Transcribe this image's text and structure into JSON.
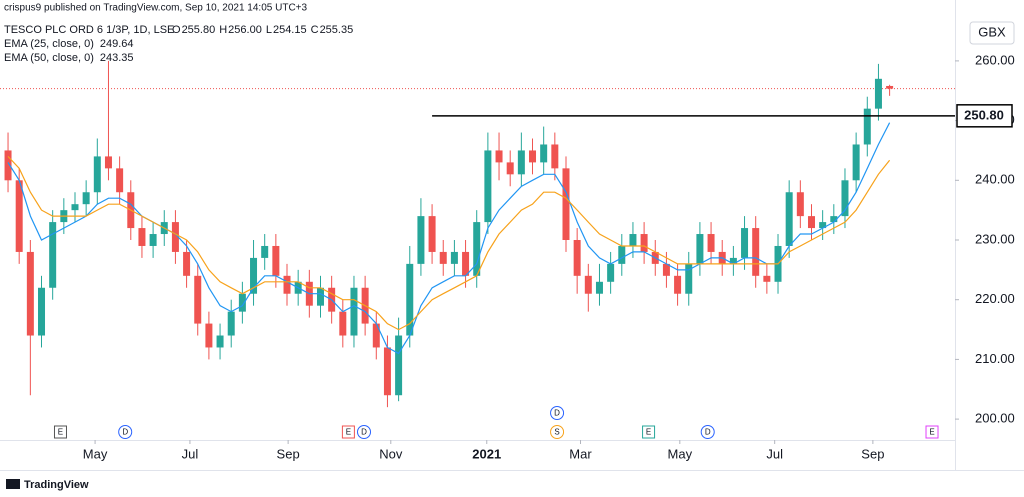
{
  "header": {
    "publisher": "crispus9 published on TradingView.com, Sep 10, 2021 14:05 UTC+3",
    "currency": "GBX",
    "footer": "TradingView"
  },
  "chart_data": {
    "type": "candlestick",
    "legend": {
      "symbol": "TESCO PLC ORD 6 1/3P, 1D, LSE",
      "ohlc": [
        {
          "key": "O",
          "value": "255.80"
        },
        {
          "key": "H",
          "value": "256.00"
        },
        {
          "key": "L",
          "value": "254.15"
        },
        {
          "key": "C",
          "value": "255.35"
        }
      ]
    },
    "open": [
      245,
      240,
      228,
      214,
      222,
      233,
      235,
      236,
      238,
      244,
      242,
      238,
      232,
      229,
      231,
      233,
      228,
      224,
      216,
      212,
      214,
      218,
      221,
      227,
      229,
      224,
      221,
      223,
      219,
      222,
      218,
      214,
      222,
      216,
      212,
      204,
      214,
      226,
      234,
      228,
      226,
      228,
      224,
      233,
      245,
      243,
      241,
      245,
      243,
      246,
      242,
      230,
      224,
      221,
      223,
      226,
      229,
      231,
      228,
      226,
      224,
      221,
      226,
      231,
      228,
      226,
      227,
      232,
      224,
      223,
      229,
      238,
      234,
      232,
      233,
      234,
      240,
      246,
      252,
      255.8
    ],
    "high": [
      248,
      242,
      230,
      224,
      235,
      237,
      238,
      240,
      247,
      260,
      244,
      240,
      234,
      233,
      235,
      235,
      230,
      226,
      218,
      216,
      220,
      223,
      230,
      231,
      231,
      226,
      225,
      225,
      224,
      224,
      220,
      224,
      224,
      218,
      214,
      217,
      229,
      237,
      236,
      230,
      230,
      230,
      235,
      248,
      248,
      245,
      248,
      247,
      249,
      248,
      244,
      232,
      226,
      226,
      228,
      231,
      233,
      233,
      230,
      228,
      226,
      228,
      233,
      233,
      230,
      229,
      234,
      234,
      226,
      231,
      240,
      240,
      236,
      235,
      236,
      242,
      248,
      254,
      259.5,
      256
    ],
    "low": [
      238,
      226,
      204,
      212,
      220,
      231,
      233,
      234,
      236,
      240,
      236,
      230,
      227,
      227,
      229,
      226,
      222,
      214,
      210,
      210,
      212,
      216,
      219,
      225,
      222,
      219,
      219,
      217,
      217,
      216,
      212,
      212,
      214,
      210,
      202,
      203,
      212,
      224,
      226,
      224,
      224,
      222,
      222,
      231,
      240,
      239,
      239,
      241,
      241,
      240,
      228,
      221,
      218,
      219,
      221,
      224,
      227,
      226,
      224,
      222,
      219,
      219,
      224,
      226,
      224,
      224,
      225,
      222,
      221,
      221,
      227,
      232,
      230,
      230,
      231,
      232,
      238,
      244,
      250,
      254.15
    ],
    "close": [
      240,
      228,
      214,
      222,
      233,
      235,
      236,
      238,
      244,
      242,
      238,
      232,
      229,
      231,
      233,
      228,
      224,
      216,
      212,
      214,
      218,
      221,
      227,
      229,
      224,
      221,
      223,
      219,
      222,
      218,
      214,
      222,
      216,
      212,
      204,
      214,
      226,
      234,
      228,
      226,
      228,
      224,
      233,
      245,
      243,
      241,
      245,
      243,
      246,
      242,
      230,
      224,
      221,
      223,
      226,
      229,
      231,
      228,
      226,
      224,
      221,
      226,
      231,
      228,
      226,
      227,
      232,
      224,
      223,
      229,
      238,
      234,
      232,
      233,
      234,
      240,
      246,
      252,
      257,
      255.35
    ],
    "up_color": "#26a69a",
    "down_color": "#ef5350",
    "series": [
      {
        "name": "EMA (25, close, 0)",
        "color": "#2196f3",
        "values": [
          243,
          240,
          234,
          230,
          231,
          232,
          233,
          234,
          236,
          237,
          237,
          236,
          234,
          233,
          232,
          231,
          229,
          226,
          222,
          219,
          218,
          219,
          222,
          224,
          224,
          223,
          222,
          221,
          221,
          220,
          218,
          219,
          218,
          216,
          212,
          211,
          214,
          219,
          222,
          223,
          224,
          224,
          226,
          232,
          235,
          237,
          239,
          240,
          241,
          241,
          238,
          233,
          229,
          227,
          226,
          227,
          228,
          228,
          227,
          226,
          225,
          225,
          226,
          227,
          227,
          226,
          227,
          227,
          226,
          226,
          229,
          231,
          231,
          232,
          233,
          235,
          238,
          242,
          246,
          249.64
        ]
      },
      {
        "name": "EMA (50, close, 0)",
        "color": "#f7a21b",
        "values": [
          244,
          242,
          238,
          235,
          234,
          234,
          234,
          234,
          235,
          236,
          236,
          235,
          234,
          233,
          232,
          231,
          230,
          228,
          225,
          223,
          222,
          221,
          222,
          223,
          223,
          223,
          223,
          222,
          222,
          221,
          220,
          220,
          219,
          218,
          216,
          215,
          216,
          218,
          220,
          221,
          222,
          223,
          224,
          228,
          231,
          233,
          235,
          236,
          238,
          238,
          237,
          235,
          233,
          231,
          230,
          229,
          229,
          229,
          228,
          227,
          226,
          226,
          226,
          226,
          226,
          226,
          226,
          226,
          226,
          226,
          228,
          229,
          230,
          231,
          232,
          233,
          235,
          238,
          241,
          243.35
        ]
      }
    ],
    "level": {
      "value": 250.8,
      "label": "250.80",
      "start": 38
    },
    "ylim": [
      196.5,
      270.2
    ],
    "yticks": [
      {
        "value": 200,
        "label": "200.00"
      },
      {
        "value": 210,
        "label": "210.00"
      },
      {
        "value": 220,
        "label": "220.00"
      },
      {
        "value": 230,
        "label": "230.00"
      },
      {
        "value": 240,
        "label": "240.00"
      },
      {
        "value": 250,
        "label": "250.00"
      },
      {
        "value": 260,
        "label": "260.00"
      }
    ],
    "xlim": [
      -0.72,
      84.86
    ],
    "xticks": [
      {
        "value": 7.8,
        "label": "May"
      },
      {
        "value": 16.3,
        "label": "Jul"
      },
      {
        "value": 25.1,
        "label": "Sep"
      },
      {
        "value": 34.3,
        "label": "Nov"
      },
      {
        "value": 42.9,
        "label": "2021"
      },
      {
        "value": 51.3,
        "label": "Mar"
      },
      {
        "value": 60.2,
        "label": "May"
      },
      {
        "value": 68.7,
        "label": "Jul"
      },
      {
        "value": 77.5,
        "label": "Sep"
      }
    ],
    "events": [
      {
        "label": "E",
        "x": 4.7,
        "shape": "square",
        "color": "#555555",
        "row": 0
      },
      {
        "label": "D",
        "x": 10.5,
        "shape": "circle",
        "color": "#2962ff",
        "row": 0
      },
      {
        "label": "E",
        "x": 30.5,
        "shape": "square",
        "color": "#ef5350",
        "row": 0
      },
      {
        "label": "D",
        "x": 31.9,
        "shape": "circle",
        "color": "#2962ff",
        "row": 0
      },
      {
        "label": "D",
        "x": 49.2,
        "shape": "circle",
        "color": "#2962ff",
        "row": 1
      },
      {
        "label": "S",
        "x": 49.2,
        "shape": "circle",
        "color": "#f7a21b",
        "row": 0
      },
      {
        "label": "E",
        "x": 57.4,
        "shape": "square",
        "color": "#26a69a",
        "row": 0
      },
      {
        "label": "D",
        "x": 62.7,
        "shape": "circle",
        "color": "#2962ff",
        "row": 0
      },
      {
        "label": "E",
        "x": 82.8,
        "shape": "square",
        "color": "#e040fb",
        "row": 0
      }
    ]
  }
}
